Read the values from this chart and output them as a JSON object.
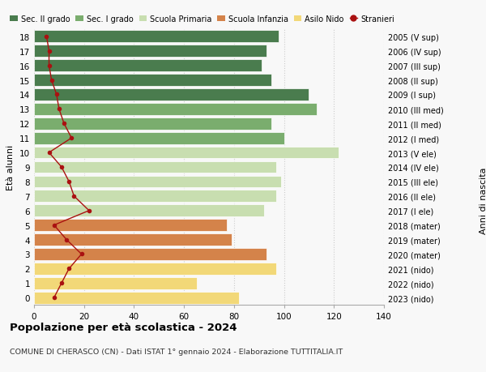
{
  "ages": [
    18,
    17,
    16,
    15,
    14,
    13,
    12,
    11,
    10,
    9,
    8,
    7,
    6,
    5,
    4,
    3,
    2,
    1,
    0
  ],
  "right_labels": [
    "2005 (V sup)",
    "2006 (IV sup)",
    "2007 (III sup)",
    "2008 (II sup)",
    "2009 (I sup)",
    "2010 (III med)",
    "2011 (II med)",
    "2012 (I med)",
    "2013 (V ele)",
    "2014 (IV ele)",
    "2015 (III ele)",
    "2016 (II ele)",
    "2017 (I ele)",
    "2018 (mater)",
    "2019 (mater)",
    "2020 (mater)",
    "2021 (nido)",
    "2022 (nido)",
    "2023 (nido)"
  ],
  "bar_values": [
    98,
    93,
    91,
    95,
    110,
    113,
    95,
    100,
    122,
    97,
    99,
    97,
    92,
    77,
    79,
    93,
    97,
    65,
    82
  ],
  "bar_colors": [
    "#4a7c4e",
    "#4a7c4e",
    "#4a7c4e",
    "#4a7c4e",
    "#4a7c4e",
    "#7aad6e",
    "#7aad6e",
    "#7aad6e",
    "#c8deb0",
    "#c8deb0",
    "#c8deb0",
    "#c8deb0",
    "#c8deb0",
    "#d4834a",
    "#d4834a",
    "#d4834a",
    "#f2d878",
    "#f2d878",
    "#f2d878"
  ],
  "stranieri_values": [
    5,
    6,
    6,
    7,
    9,
    10,
    12,
    15,
    6,
    11,
    14,
    16,
    22,
    8,
    13,
    19,
    14,
    11,
    8
  ],
  "title_bold": "Popolazione per età scolastica - 2024",
  "subtitle": "COMUNE DI CHERASCO (CN) - Dati ISTAT 1° gennaio 2024 - Elaborazione TUTTITALIA.IT",
  "ylabel": "Età alunni",
  "right_ylabel": "Anni di nascita",
  "xlim": [
    0,
    140
  ],
  "xticks": [
    0,
    20,
    40,
    60,
    80,
    100,
    120,
    140
  ],
  "legend_items": [
    {
      "label": "Sec. II grado",
      "color": "#4a7c4e"
    },
    {
      "label": "Sec. I grado",
      "color": "#7aad6e"
    },
    {
      "label": "Scuola Primaria",
      "color": "#c8deb0"
    },
    {
      "label": "Scuola Infanzia",
      "color": "#d4834a"
    },
    {
      "label": "Asilo Nido",
      "color": "#f2d878"
    },
    {
      "label": "Stranieri",
      "color": "#aa1111"
    }
  ],
  "background_color": "#f8f8f8",
  "grid_color": "#cccccc"
}
